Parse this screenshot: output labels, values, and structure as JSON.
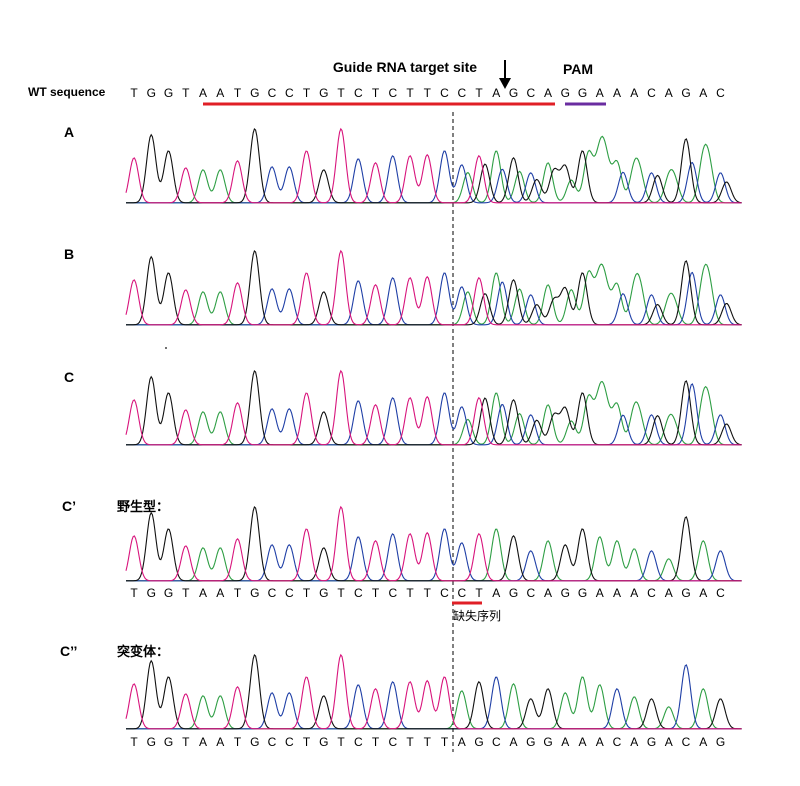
{
  "header": {
    "guide_title": "Guide RNA target site",
    "pam_label": "PAM",
    "wt_label": "WT sequence",
    "wt_sequence": "TGGTAATGCCTGTCTCTTCCTAGCAGGAAACAGAC"
  },
  "panels": [
    {
      "label": "A",
      "subtitle": ""
    },
    {
      "label": "B",
      "subtitle": ""
    },
    {
      "label": "C",
      "subtitle": ""
    },
    {
      "label": "C’",
      "subtitle": "野生型：",
      "sequence": "TGGTAATGCCTGTCTCTTCCTAGCAGGAAACAGAC",
      "deletion_note": "缺失序列"
    },
    {
      "label": "C’’",
      "subtitle": "突变体：",
      "sequence": "TGGTAATGCCTGTCTCTTTAGCAGGAAACAGACAG"
    }
  ],
  "colors": {
    "A": "#2e9e44",
    "C": "#1f3fa6",
    "G": "#111111",
    "T": "#d8147c",
    "guide_underline": "#e01f26",
    "pam_underline": "#6a2ca0",
    "deletion_underline": "#e01f26"
  }
}
